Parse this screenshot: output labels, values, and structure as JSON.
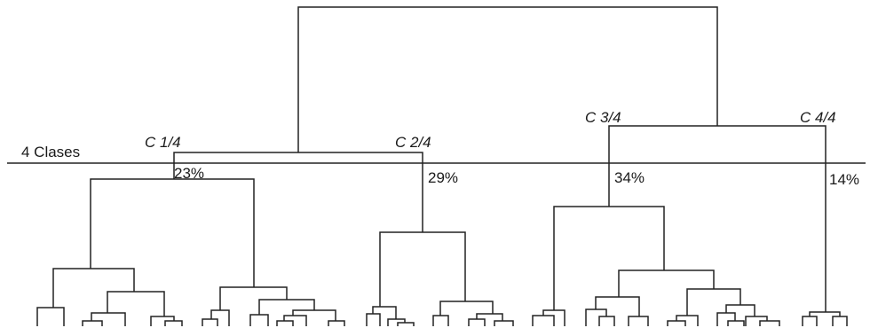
{
  "cut_label": "4 Clases",
  "clusters": [
    {
      "name": "C 1/4",
      "share": "23%"
    },
    {
      "name": "C 2/4",
      "share": "29%"
    },
    {
      "name": "C 3/4",
      "share": "34%"
    },
    {
      "name": "C 4/4",
      "share": "14%"
    }
  ],
  "colors": {
    "line": "#222222",
    "text": "#1a1a1a",
    "background": "#ffffff"
  }
}
